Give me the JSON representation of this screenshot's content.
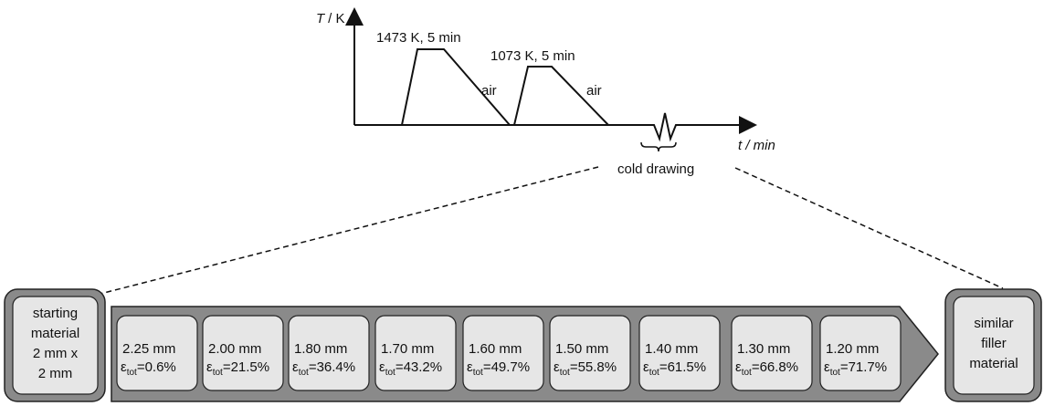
{
  "graph": {
    "y_axis_label": {
      "variable": "T",
      "unit": "/ K"
    },
    "x_axis_label": "t / min",
    "annealings": [
      {
        "label": "1473 K, 5 min",
        "cooling": "air"
      },
      {
        "label": "1073 K, 5 min",
        "cooling": "air"
      }
    ],
    "break_label": "cold drawing"
  },
  "start": {
    "lines": [
      "starting",
      "material",
      "2 mm x",
      "2 mm"
    ]
  },
  "steps": [
    {
      "diameter": "2.25 mm",
      "symbol": "ε",
      "subscript": "tot",
      "strain": "=0.6%"
    },
    {
      "diameter": "2.00 mm",
      "symbol": "ε",
      "subscript": "tot",
      "strain": "=21.5%"
    },
    {
      "diameter": "1.80 mm",
      "symbol": "ε",
      "subscript": "tot",
      "strain": "=36.4%"
    },
    {
      "diameter": "1.70 mm",
      "symbol": "ε",
      "subscript": "tot",
      "strain": "=43.2%"
    },
    {
      "diameter": "1.60 mm",
      "symbol": "ε",
      "subscript": "tot",
      "strain": "=49.7%"
    },
    {
      "diameter": "1.50 mm",
      "symbol": "ε",
      "subscript": "tot",
      "strain": "=55.8%"
    },
    {
      "diameter": "1.40 mm",
      "symbol": "ε",
      "subscript": "tot",
      "strain": "=61.5%"
    },
    {
      "diameter": "1.30 mm",
      "symbol": "ε",
      "subscript": "tot",
      "strain": "=66.8%"
    },
    {
      "diameter": "1.20 mm",
      "symbol": "ε",
      "subscript": "tot",
      "strain": "=71.7%"
    }
  ],
  "end": {
    "lines": [
      "similar",
      "filler",
      "material"
    ]
  }
}
